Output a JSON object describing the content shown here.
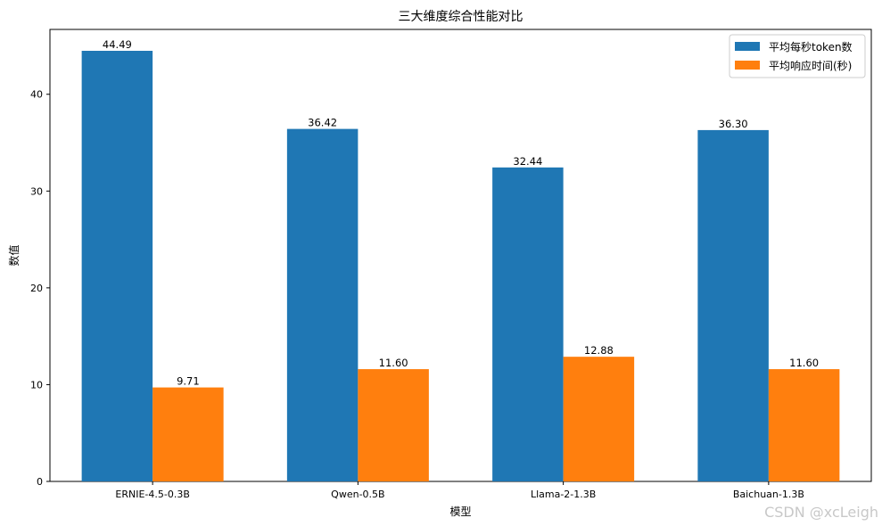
{
  "chart_data": {
    "type": "bar",
    "title": "三大维度综合性能对比",
    "xlabel": "模型",
    "ylabel": "数值",
    "categories": [
      "ERNIE-4.5-0.3B",
      "Qwen-0.5B",
      "Llama-2-1.3B",
      "Baichuan-1.3B"
    ],
    "series": [
      {
        "name": "平均每秒token数",
        "color": "#1f77b4",
        "values": [
          44.49,
          36.42,
          32.44,
          36.3
        ],
        "labels": [
          "44.49",
          "36.42",
          "32.44",
          "36.30"
        ]
      },
      {
        "name": "平均响应时间(秒)",
        "color": "#ff7f0e",
        "values": [
          9.71,
          11.6,
          12.88,
          11.6
        ],
        "labels": [
          "9.71",
          "11.60",
          "12.88",
          "11.60"
        ]
      }
    ],
    "ylim": [
      0,
      46.7
    ],
    "yticks": [
      0,
      10,
      20,
      30,
      40
    ],
    "legend": "top-right",
    "grid": false
  },
  "watermark": "CSDN @xcLeigh"
}
